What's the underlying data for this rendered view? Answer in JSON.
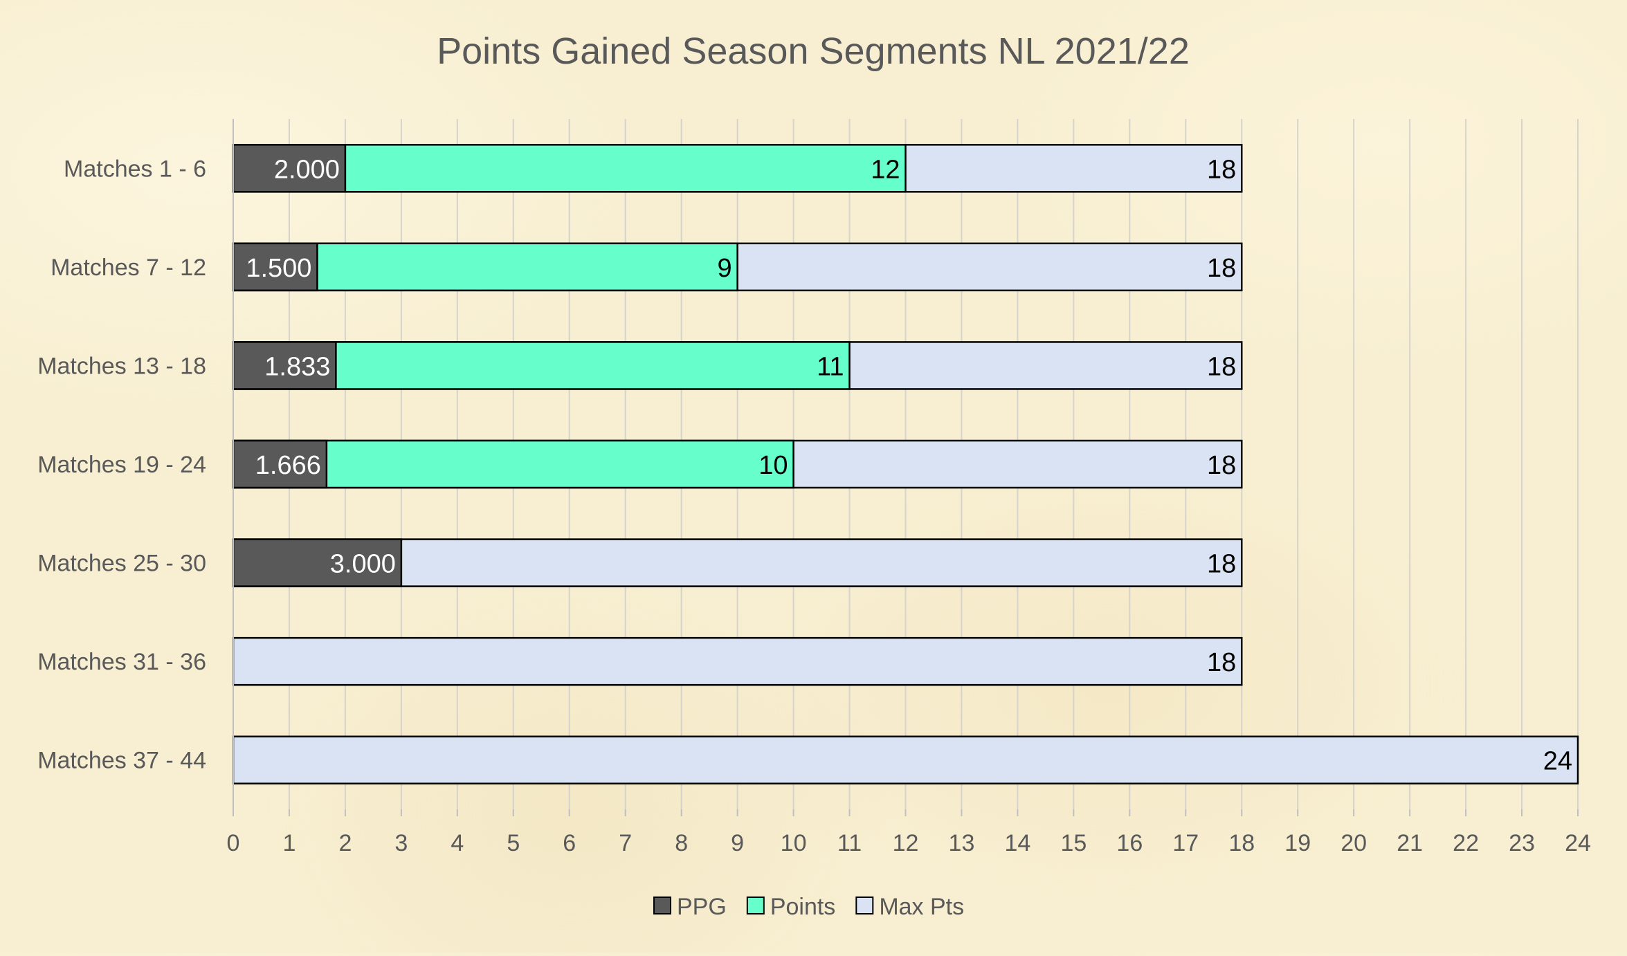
{
  "chart_data": {
    "type": "bar",
    "orientation": "horizontal",
    "title": "Points Gained Season Segments NL 2021/22",
    "categories": [
      "Matches 1 - 6",
      "Matches 7 - 12",
      "Matches 13 - 18",
      "Matches 19 - 24",
      "Matches 25 - 30",
      "Matches 31 - 36",
      "Matches 37 - 44"
    ],
    "series": [
      {
        "name": "PPG",
        "color": "#595959",
        "values": [
          2.0,
          1.5,
          1.833,
          1.666,
          3.0,
          null,
          null
        ],
        "labels": [
          "2.000",
          "1.500",
          "1.833",
          "1.666",
          "3.000",
          "",
          ""
        ]
      },
      {
        "name": "Points",
        "color": "#66ffcc",
        "values": [
          12,
          9,
          11,
          10,
          null,
          null,
          null
        ],
        "labels": [
          "12",
          "9",
          "11",
          "10",
          "",
          "",
          ""
        ]
      },
      {
        "name": "Max Pts",
        "color": "#dae3f3",
        "values": [
          18,
          18,
          18,
          18,
          18,
          18,
          24
        ],
        "labels": [
          "18",
          "18",
          "18",
          "18",
          "18",
          "18",
          "24"
        ]
      }
    ],
    "xlim": [
      0,
      24
    ],
    "xticks": [
      "0",
      "1",
      "2",
      "3",
      "4",
      "5",
      "6",
      "7",
      "8",
      "9",
      "10",
      "11",
      "12",
      "13",
      "14",
      "15",
      "16",
      "17",
      "18",
      "19",
      "20",
      "21",
      "22",
      "23",
      "24"
    ],
    "grid": true,
    "legend_position": "bottom"
  }
}
